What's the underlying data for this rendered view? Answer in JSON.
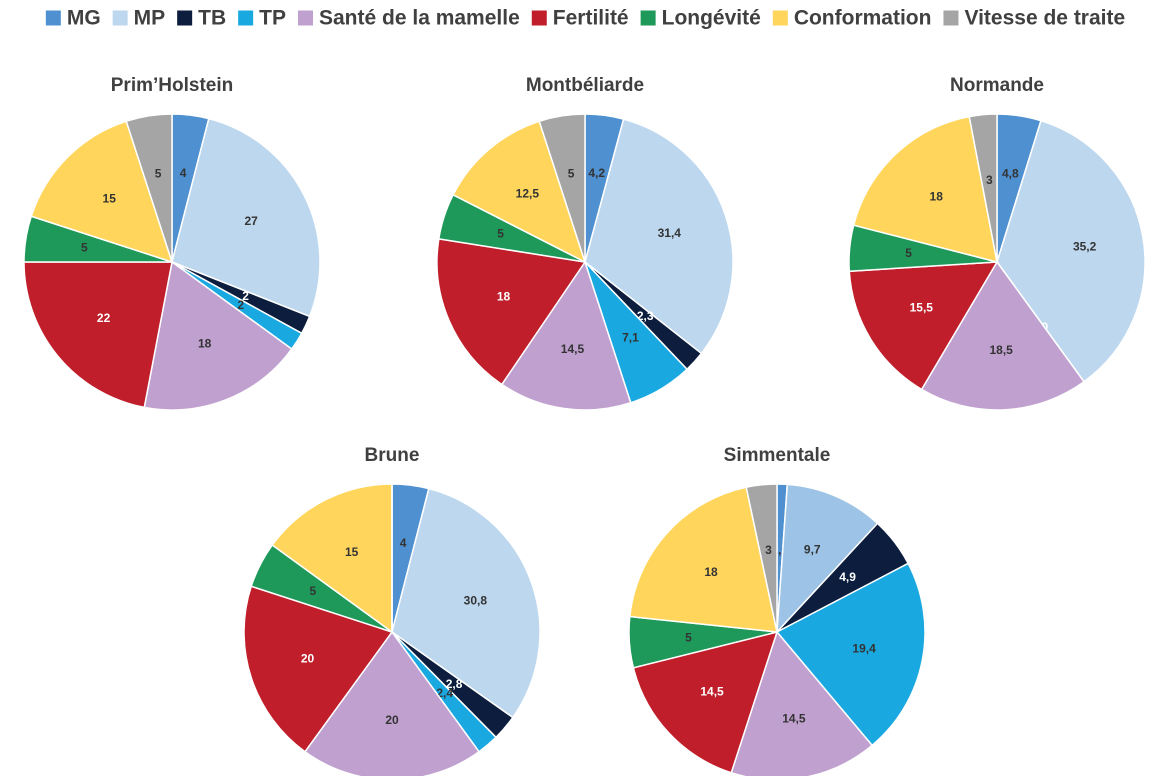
{
  "chart_data": [
    {
      "type": "pie",
      "title": "Prim’Holstein",
      "categories": [
        "MG",
        "MP",
        "TB",
        "TP",
        "Santé de la mamelle",
        "Fertilité",
        "Longévité",
        "Conformation",
        "Vitesse de traite"
      ],
      "colors": [
        "#4f90d0",
        "#bdd7ee",
        "#0c1d3e",
        "#19a8e0",
        "#c0a0cf",
        "#bf1e2a",
        "#1f995a",
        "#ffd55c",
        "#a5a5a5"
      ],
      "values": [
        4,
        27,
        2,
        2,
        18,
        22,
        5,
        15,
        5
      ],
      "value_labels": [
        "4",
        "27",
        "2",
        "2",
        "18",
        "22",
        "5",
        "15",
        "5"
      ]
    },
    {
      "type": "pie",
      "title": "Montbéliarde",
      "categories": [
        "MG",
        "MP",
        "TB",
        "TP",
        "Santé de la mamelle",
        "Fertilité",
        "Longévité",
        "Conformation",
        "Vitesse de traite"
      ],
      "colors": [
        "#4f90d0",
        "#bdd7ee",
        "#0c1d3e",
        "#19a8e0",
        "#c0a0cf",
        "#bf1e2a",
        "#1f995a",
        "#ffd55c",
        "#a5a5a5"
      ],
      "values": [
        4.2,
        31.4,
        2.3,
        7.1,
        14.5,
        18,
        5,
        12.5,
        5
      ],
      "value_labels": [
        "4,2",
        "31,4",
        "2,3",
        "7,1",
        "14,5",
        "18",
        "5",
        "12,5",
        "5"
      ]
    },
    {
      "type": "pie",
      "title": "Normande",
      "categories": [
        "MG",
        "MP",
        "TB",
        "TP",
        "Santé de la mamelle",
        "Fertilité",
        "Longévité",
        "Conformation",
        "Vitesse de traite"
      ],
      "colors": [
        "#4f90d0",
        "#bdd7ee",
        "#0c1d3e",
        "#19a8e0",
        "#c0a0cf",
        "#bf1e2a",
        "#1f995a",
        "#ffd55c",
        "#a5a5a5"
      ],
      "values": [
        4.8,
        35.2,
        0,
        0,
        18.5,
        15.5,
        5,
        18,
        3
      ],
      "value_labels": [
        "4,8",
        "35,2",
        "0",
        null,
        "18,5",
        "15,5",
        "5",
        "18",
        "3"
      ]
    },
    {
      "type": "pie",
      "title": "Brune",
      "categories": [
        "MG",
        "MP",
        "TB",
        "TP",
        "Santé de la mamelle",
        "Fertilité",
        "Longévité",
        "Conformation",
        "Vitesse de traite"
      ],
      "colors": [
        "#4f90d0",
        "#bdd7ee",
        "#0c1d3e",
        "#19a8e0",
        "#c0a0cf",
        "#bf1e2a",
        "#1f995a",
        "#ffd55c",
        "#a5a5a5"
      ],
      "values": [
        4,
        30.8,
        2.8,
        2.4,
        20,
        20,
        5,
        15,
        0
      ],
      "value_labels": [
        "4",
        "30,8",
        "2,8",
        "2,4",
        "20",
        "20",
        "5",
        "15",
        null
      ]
    },
    {
      "type": "pie",
      "title": "Simmentale",
      "categories": [
        "MG",
        "MP",
        "TB",
        "TP",
        "Santé de la mamelle",
        "Fertilité",
        "Longévité",
        "Conformation",
        "Vitesse de traite"
      ],
      "colors": [
        "#4f90d0",
        "#9dc3e6",
        "#0c1d3e",
        "#19a8e0",
        "#c0a0cf",
        "#bf1e2a",
        "#1f995a",
        "#ffd55c",
        "#a5a5a5"
      ],
      "values": [
        1.0,
        9.7,
        4.9,
        19.4,
        14.5,
        14.5,
        5,
        18,
        3
      ],
      "value_labels": [
        "1,0",
        "9,7",
        "4,9",
        "19,4",
        "14,5",
        "14,5",
        "5",
        "18",
        "3"
      ]
    }
  ]
}
